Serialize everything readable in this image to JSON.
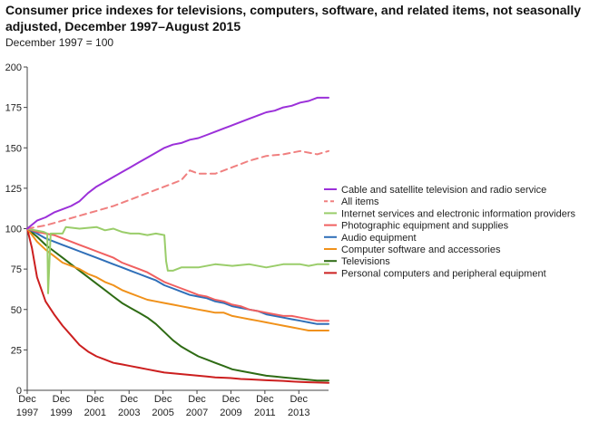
{
  "title": "Consumer price indexes for televisions, computers, software, and related items, not seasonally adjusted, December 1997–August 2015",
  "subtitle": "December 1997 = 100",
  "chart_data": {
    "type": "line",
    "title": "Consumer price indexes for televisions, computers, software, and related items, not seasonally adjusted, December 1997–August 2015",
    "subtitle": "December 1997 = 100",
    "ylim": [
      0,
      200
    ],
    "yticks": [
      0,
      25,
      50,
      75,
      100,
      125,
      150,
      175,
      200
    ],
    "xlim": [
      1997.92,
      2015.67
    ],
    "xticks": [
      {
        "x": 1997.92,
        "month": "Dec",
        "year": "1997"
      },
      {
        "x": 1999.92,
        "month": "Dec",
        "year": "1999"
      },
      {
        "x": 2001.92,
        "month": "Dec",
        "year": "2001"
      },
      {
        "x": 2003.92,
        "month": "Dec",
        "year": "2003"
      },
      {
        "x": 2005.92,
        "month": "Dec",
        "year": "2005"
      },
      {
        "x": 2007.92,
        "month": "Dec",
        "year": "2007"
      },
      {
        "x": 2009.92,
        "month": "Dec",
        "year": "2009"
      },
      {
        "x": 2011.92,
        "month": "Dec",
        "year": "2011"
      },
      {
        "x": 2013.92,
        "month": "Dec",
        "year": "2013"
      }
    ],
    "grid": false,
    "legend_position": "right",
    "series": [
      {
        "name": "Cable and satellite television and radio service",
        "color": "#9b30d9",
        "dash": "solid",
        "x": [
          1997.92,
          1998.5,
          1999,
          1999.5,
          2000,
          2000.5,
          2001,
          2001.5,
          2002,
          2002.5,
          2003,
          2003.5,
          2004,
          2004.5,
          2005,
          2005.5,
          2006,
          2006.5,
          2007,
          2007.5,
          2008,
          2008.5,
          2009,
          2009.5,
          2010,
          2010.5,
          2011,
          2011.5,
          2012,
          2012.5,
          2013,
          2013.5,
          2014,
          2014.5,
          2015,
          2015.67
        ],
        "y": [
          100,
          105,
          107,
          110,
          112,
          114,
          117,
          122,
          126,
          129,
          132,
          135,
          138,
          141,
          144,
          147,
          150,
          152,
          153,
          155,
          156,
          158,
          160,
          162,
          164,
          166,
          168,
          170,
          172,
          173,
          175,
          176,
          178,
          179,
          181,
          181
        ]
      },
      {
        "name": "All items",
        "color": "#f08080",
        "dash": "dashed",
        "x": [
          1997.92,
          1999,
          2000,
          2001,
          2002,
          2003,
          2004,
          2005,
          2006,
          2007,
          2007.5,
          2008,
          2009,
          2010,
          2011,
          2012,
          2013,
          2014,
          2015,
          2015.67
        ],
        "y": [
          100,
          102,
          105,
          108,
          111,
          114,
          118,
          122,
          126,
          130,
          136,
          134,
          134,
          138,
          142,
          145,
          146,
          148,
          146,
          148
        ]
      },
      {
        "name": "Internet services and electronic information providers",
        "color": "#9acd6a",
        "dash": "solid",
        "x": [
          1997.92,
          1998.4,
          1998.9,
          1999.1,
          1999.15,
          1999.3,
          1999.5,
          2000,
          2000.2,
          2001,
          2002,
          2002.5,
          2003,
          2003.5,
          2004,
          2004.5,
          2005,
          2005.5,
          2006,
          2006.1,
          2006.2,
          2006.5,
          2007,
          2008,
          2009,
          2010,
          2011,
          2012,
          2013,
          2014,
          2014.5,
          2015,
          2015.67
        ],
        "y": [
          100,
          99,
          98,
          97,
          60,
          97,
          97,
          97,
          101,
          100,
          101,
          99,
          100,
          98,
          97,
          97,
          96,
          97,
          96,
          80,
          74,
          74,
          76,
          76,
          78,
          77,
          78,
          76,
          78,
          78,
          77,
          78,
          78
        ]
      },
      {
        "name": "Photographic equipment and supplies",
        "color": "#f06060",
        "dash": "solid",
        "x": [
          1997.92,
          1998.5,
          1999,
          1999.5,
          2000,
          2000.5,
          2001,
          2001.5,
          2002,
          2002.5,
          2003,
          2003.5,
          2004,
          2004.5,
          2005,
          2005.5,
          2006,
          2006.5,
          2007,
          2007.5,
          2008,
          2008.5,
          2009,
          2009.5,
          2010,
          2010.5,
          2011,
          2011.5,
          2012,
          2012.5,
          2013,
          2013.5,
          2014,
          2014.5,
          2015,
          2015.67
        ],
        "y": [
          100,
          98,
          97,
          96,
          94,
          92,
          90,
          88,
          86,
          84,
          82,
          79,
          77,
          75,
          73,
          70,
          67,
          65,
          63,
          61,
          59,
          58,
          56,
          55,
          53,
          52,
          50,
          49,
          48,
          47,
          46,
          46,
          45,
          44,
          43,
          43
        ]
      },
      {
        "name": "Audio equipment",
        "color": "#2f6fb8",
        "dash": "solid",
        "x": [
          1997.92,
          1998.5,
          1999,
          1999.5,
          2000,
          2000.5,
          2001,
          2001.5,
          2002,
          2002.5,
          2003,
          2003.5,
          2004,
          2004.5,
          2005,
          2005.5,
          2006,
          2006.5,
          2007,
          2007.5,
          2008,
          2008.5,
          2009,
          2009.5,
          2010,
          2010.5,
          2011,
          2011.5,
          2012,
          2012.5,
          2013,
          2013.5,
          2014,
          2014.5,
          2015,
          2015.67
        ],
        "y": [
          100,
          97,
          94,
          92,
          90,
          88,
          86,
          84,
          82,
          80,
          78,
          76,
          74,
          72,
          70,
          68,
          65,
          63,
          61,
          59,
          58,
          57,
          55,
          54,
          52,
          51,
          50,
          49,
          47,
          46,
          45,
          44,
          43,
          42,
          41,
          41
        ]
      },
      {
        "name": "Computer software and accessories",
        "color": "#f0911a",
        "dash": "solid",
        "x": [
          1997.92,
          1998.5,
          1999,
          1999.5,
          2000,
          2000.5,
          2001,
          2001.5,
          2002,
          2002.5,
          2003,
          2003.5,
          2004,
          2004.5,
          2005,
          2005.5,
          2006,
          2006.5,
          2007,
          2007.5,
          2008,
          2008.5,
          2009,
          2009.5,
          2010,
          2010.5,
          2011,
          2011.5,
          2012,
          2012.5,
          2013,
          2013.5,
          2014,
          2014.5,
          2015,
          2015.67
        ],
        "y": [
          100,
          92,
          87,
          83,
          79,
          77,
          75,
          72,
          70,
          67,
          65,
          62,
          60,
          58,
          56,
          55,
          54,
          53,
          52,
          51,
          50,
          49,
          48,
          48,
          46,
          45,
          44,
          43,
          42,
          41,
          40,
          39,
          38,
          37,
          37,
          37
        ]
      },
      {
        "name": "Televisions",
        "color": "#2e6b14",
        "dash": "solid",
        "x": [
          1997.92,
          1998.5,
          1999,
          1999.5,
          2000,
          2000.5,
          2001,
          2001.5,
          2002,
          2002.5,
          2003,
          2003.5,
          2004,
          2004.5,
          2005,
          2005.5,
          2006,
          2006.5,
          2007,
          2007.5,
          2008,
          2008.5,
          2009,
          2009.5,
          2010,
          2010.5,
          2011,
          2011.5,
          2012,
          2012.5,
          2013,
          2013.5,
          2014,
          2014.5,
          2015,
          2015.67
        ],
        "y": [
          100,
          95,
          90,
          86,
          82,
          78,
          74,
          70,
          66,
          62,
          58,
          54,
          51,
          48,
          45,
          41,
          36,
          31,
          27,
          24,
          21,
          19,
          17,
          15,
          13,
          12,
          11,
          10,
          9,
          8.5,
          8,
          7.5,
          7,
          6.5,
          6,
          6
        ]
      },
      {
        "name": "Personal computers and peripheral equipment",
        "color": "#cc1f1f",
        "dash": "solid",
        "x": [
          1997.92,
          1998.2,
          1998.5,
          1999,
          1999.5,
          2000,
          2000.5,
          2001,
          2001.5,
          2002,
          2002.5,
          2003,
          2003.5,
          2004,
          2004.5,
          2005,
          2005.5,
          2006,
          2006.5,
          2007,
          2007.5,
          2008,
          2008.5,
          2009,
          2009.5,
          2010,
          2010.5,
          2011,
          2011.5,
          2012,
          2012.5,
          2013,
          2013.5,
          2014,
          2014.5,
          2015,
          2015.67
        ],
        "y": [
          100,
          88,
          70,
          55,
          47,
          40,
          34,
          28,
          24,
          21,
          19,
          17,
          16,
          15,
          14,
          13,
          12,
          11,
          10.5,
          10,
          9.5,
          9,
          8.5,
          8,
          7.8,
          7.5,
          7,
          6.8,
          6.5,
          6.2,
          6,
          5.8,
          5.5,
          5.2,
          5,
          4.8,
          4.6
        ]
      }
    ]
  }
}
